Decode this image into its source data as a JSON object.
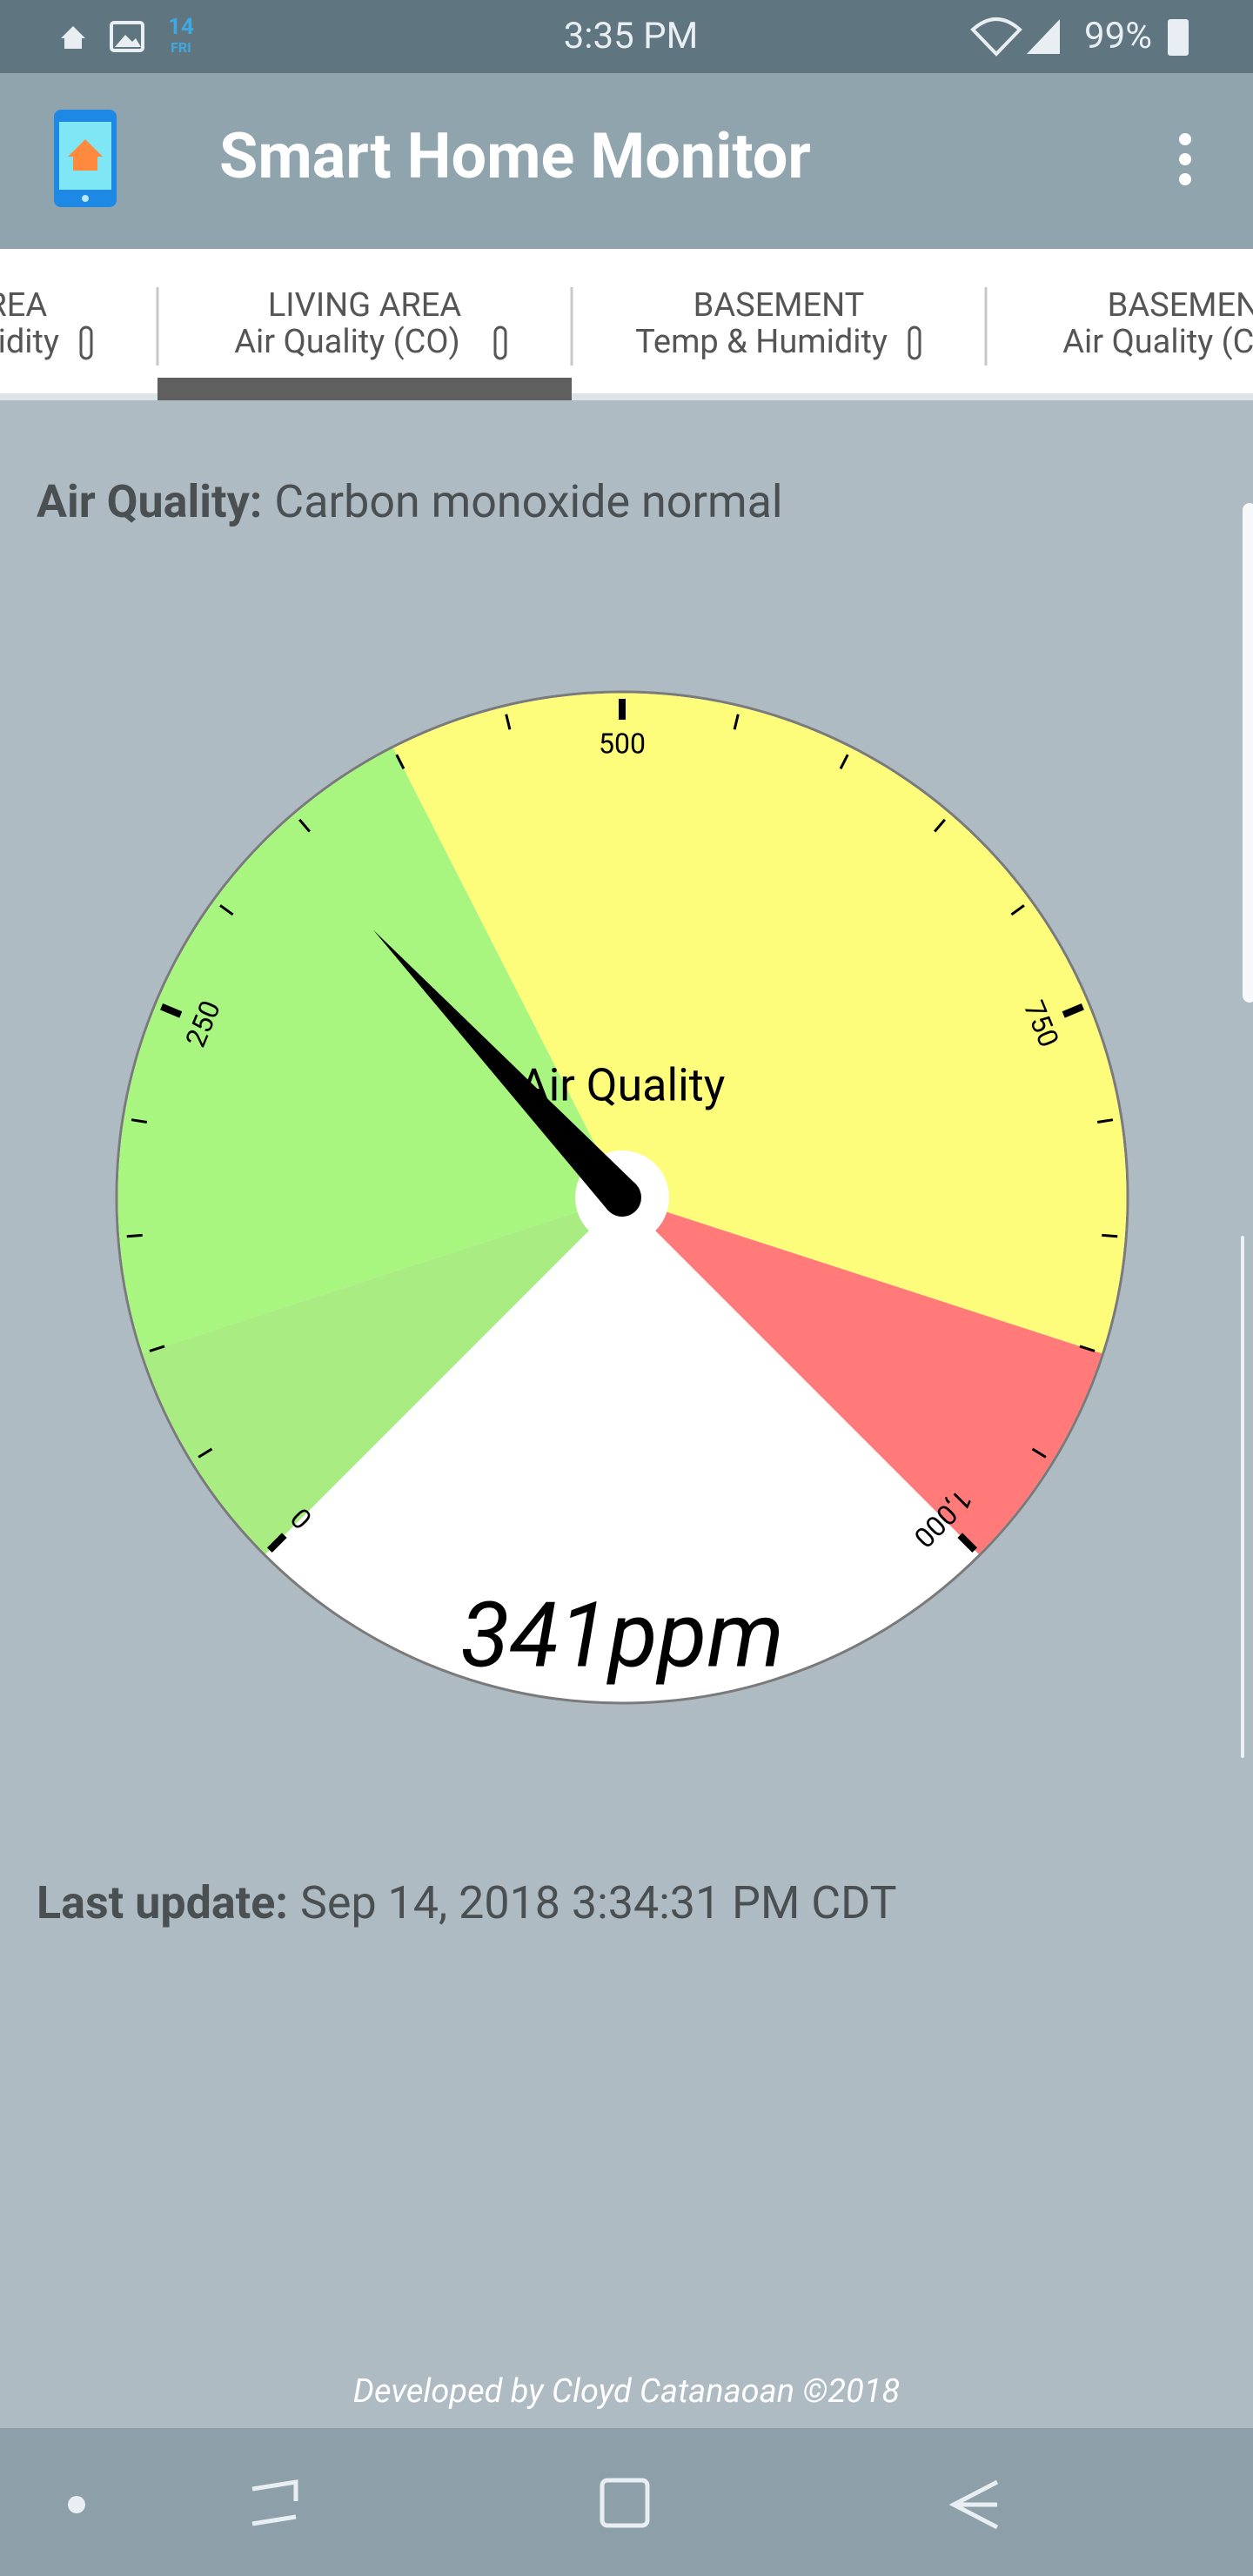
{
  "status_bar": {
    "date_day": "14",
    "date_weekday": "FRI",
    "time": "3:35 PM",
    "battery": "99%"
  },
  "app_bar": {
    "title": "Smart Home Monitor"
  },
  "tabs": [
    {
      "line1": "LIVING AREA",
      "line2": "Temp & Humidity"
    },
    {
      "line1": "LIVING AREA",
      "line2": "Air Quality (CO)"
    },
    {
      "line1": "BASEMENT",
      "line2": "Temp & Humidity"
    },
    {
      "line1": "BASEMENT",
      "line2": "Air Quality (CO)"
    }
  ],
  "status": {
    "label": "Air Quality:",
    "text": "Carbon monoxide normal"
  },
  "gauge": {
    "title": "Air Quality",
    "value": 341,
    "value_label": "341ppm",
    "range": [
      0,
      1000
    ],
    "major_ticks": [
      0,
      250,
      500,
      750,
      {
        "value": 1000,
        "label": "1,000"
      }
    ],
    "minor_ticks": [
      50,
      100,
      150,
      200,
      300,
      350,
      400,
      450,
      550,
      600,
      650,
      700,
      800,
      850,
      900,
      950
    ],
    "bands": [
      {
        "from": 0,
        "to": 100,
        "color": "#a9ec81"
      },
      {
        "from": 100,
        "to": 400,
        "color": "#a8f580"
      },
      {
        "from": 400,
        "to": 900,
        "color": "#fdfd7b"
      },
      {
        "from": 900,
        "to": 1000,
        "color": "#ff7a78"
      }
    ]
  },
  "last_update": {
    "label": "Last update:",
    "text": "Sep 14, 2018 3:34:31 PM CDT"
  },
  "footer": "Developed by Cloyd Catanaoan ©2018"
}
